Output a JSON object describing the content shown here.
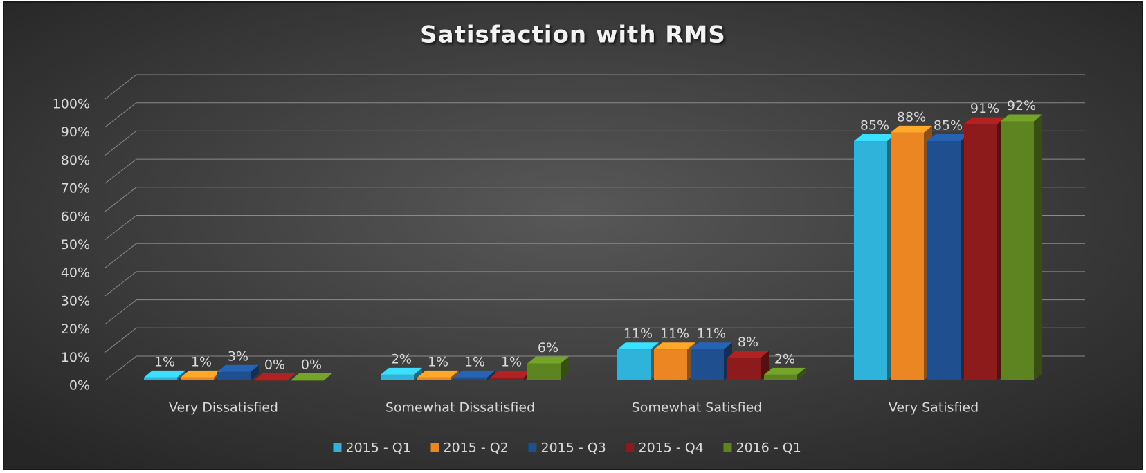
{
  "chart_data": {
    "type": "bar3d",
    "title": "Satisfaction with RMS",
    "categories": [
      "Very Dissatisfied",
      "Somewhat Dissatisfied",
      "Somewhat Satisfied",
      "Very Satisfied"
    ],
    "series": [
      {
        "name": "2015 - Q1",
        "color": "#2fb3da",
        "values": [
          1,
          2,
          11,
          85
        ],
        "value_labels": [
          "1%",
          "2%",
          "11%",
          "85%"
        ]
      },
      {
        "name": "2015 - Q2",
        "color": "#ec8622",
        "values": [
          1,
          1,
          11,
          88
        ],
        "value_labels": [
          "1%",
          "1%",
          "11%",
          "88%"
        ]
      },
      {
        "name": "2015 - Q3",
        "color": "#1f4f8f",
        "values": [
          3,
          1,
          11,
          85
        ],
        "value_labels": [
          "3%",
          "1%",
          "11%",
          "85%"
        ]
      },
      {
        "name": "2015 - Q4",
        "color": "#8e1b1b",
        "values": [
          0,
          1,
          8,
          91
        ],
        "value_labels": [
          "0%",
          "1%",
          "8%",
          "91%"
        ]
      },
      {
        "name": "2016 - Q1",
        "color": "#5d8420",
        "values": [
          0,
          6,
          2,
          92
        ],
        "value_labels": [
          "0%",
          "6%",
          "2%",
          "92%"
        ]
      }
    ],
    "ylim": [
      0,
      100
    ],
    "yticks": [
      {
        "value": 0,
        "label": "0%"
      },
      {
        "value": 10,
        "label": "10%"
      },
      {
        "value": 20,
        "label": "20%"
      },
      {
        "value": 30,
        "label": "30%"
      },
      {
        "value": 40,
        "label": "40%"
      },
      {
        "value": 50,
        "label": "50%"
      },
      {
        "value": 60,
        "label": "60%"
      },
      {
        "value": 70,
        "label": "70%"
      },
      {
        "value": 80,
        "label": "80%"
      },
      {
        "value": 90,
        "label": "90%"
      },
      {
        "value": 100,
        "label": "100%"
      }
    ],
    "grid": true,
    "legend": "bottom"
  }
}
